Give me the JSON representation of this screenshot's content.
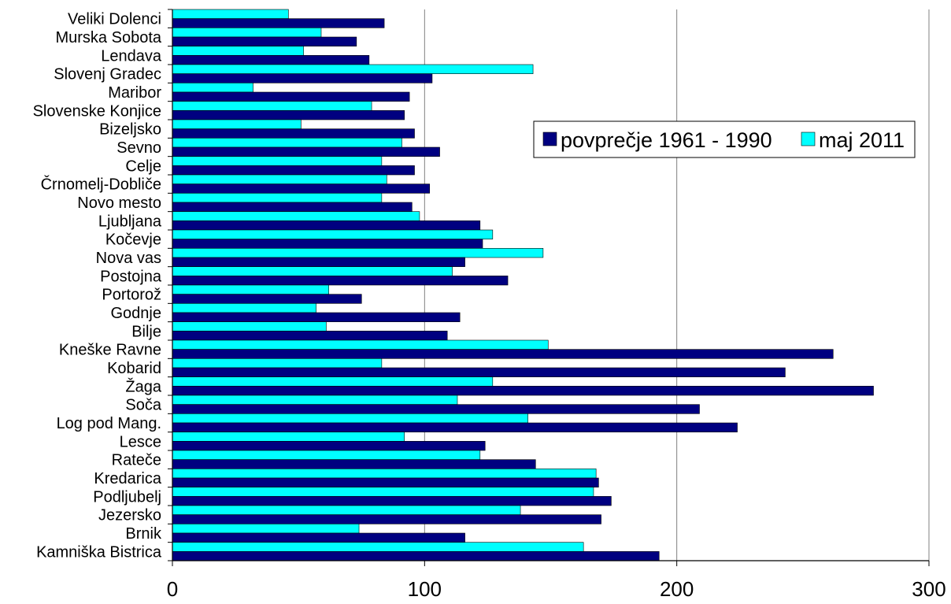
{
  "chart_data": {
    "type": "bar",
    "orientation": "horizontal",
    "categories": [
      "Veliki Dolenci",
      "Murska Sobota",
      "Lendava",
      "Slovenj Gradec",
      "Maribor",
      "Slovenske Konjice",
      "Bizeljsko",
      "Sevno",
      "Celje",
      "Črnomelj-Dobliče",
      "Novo mesto",
      "Ljubljana",
      "Kočevje",
      "Nova vas",
      "Postojna",
      "Portorož",
      "Godnje",
      "Bilje",
      "Kneške Ravne",
      "Kobarid",
      "Žaga",
      "Soča",
      "Log pod Mang.",
      "Lesce",
      "Rateče",
      "Kredarica",
      "Podljubelj",
      "Jezersko",
      "Brnik",
      "Kamniška Bistrica"
    ],
    "series": [
      {
        "name": "povprečje 1961 - 1990",
        "color": "#000080",
        "values": [
          84,
          73,
          78,
          103,
          94,
          92,
          96,
          106,
          96,
          102,
          95,
          122,
          123,
          116,
          133,
          75,
          114,
          109,
          262,
          243,
          278,
          209,
          224,
          124,
          144,
          169,
          174,
          170,
          116,
          193
        ]
      },
      {
        "name": "maj 2011",
        "color": "#00FFFF",
        "values": [
          46,
          59,
          52,
          143,
          32,
          79,
          51,
          91,
          83,
          85,
          83,
          98,
          127,
          147,
          111,
          62,
          57,
          61,
          149,
          83,
          127,
          113,
          141,
          92,
          122,
          168,
          167,
          138,
          74,
          163
        ]
      }
    ],
    "xlim": [
      0,
      300
    ],
    "xticks": [
      0,
      100,
      200,
      300
    ],
    "xticklabels": [
      "0",
      "100",
      "200",
      "300"
    ],
    "title": "",
    "xlabel": "",
    "ylabel": "",
    "grid": "vertical",
    "legend": "right"
  }
}
